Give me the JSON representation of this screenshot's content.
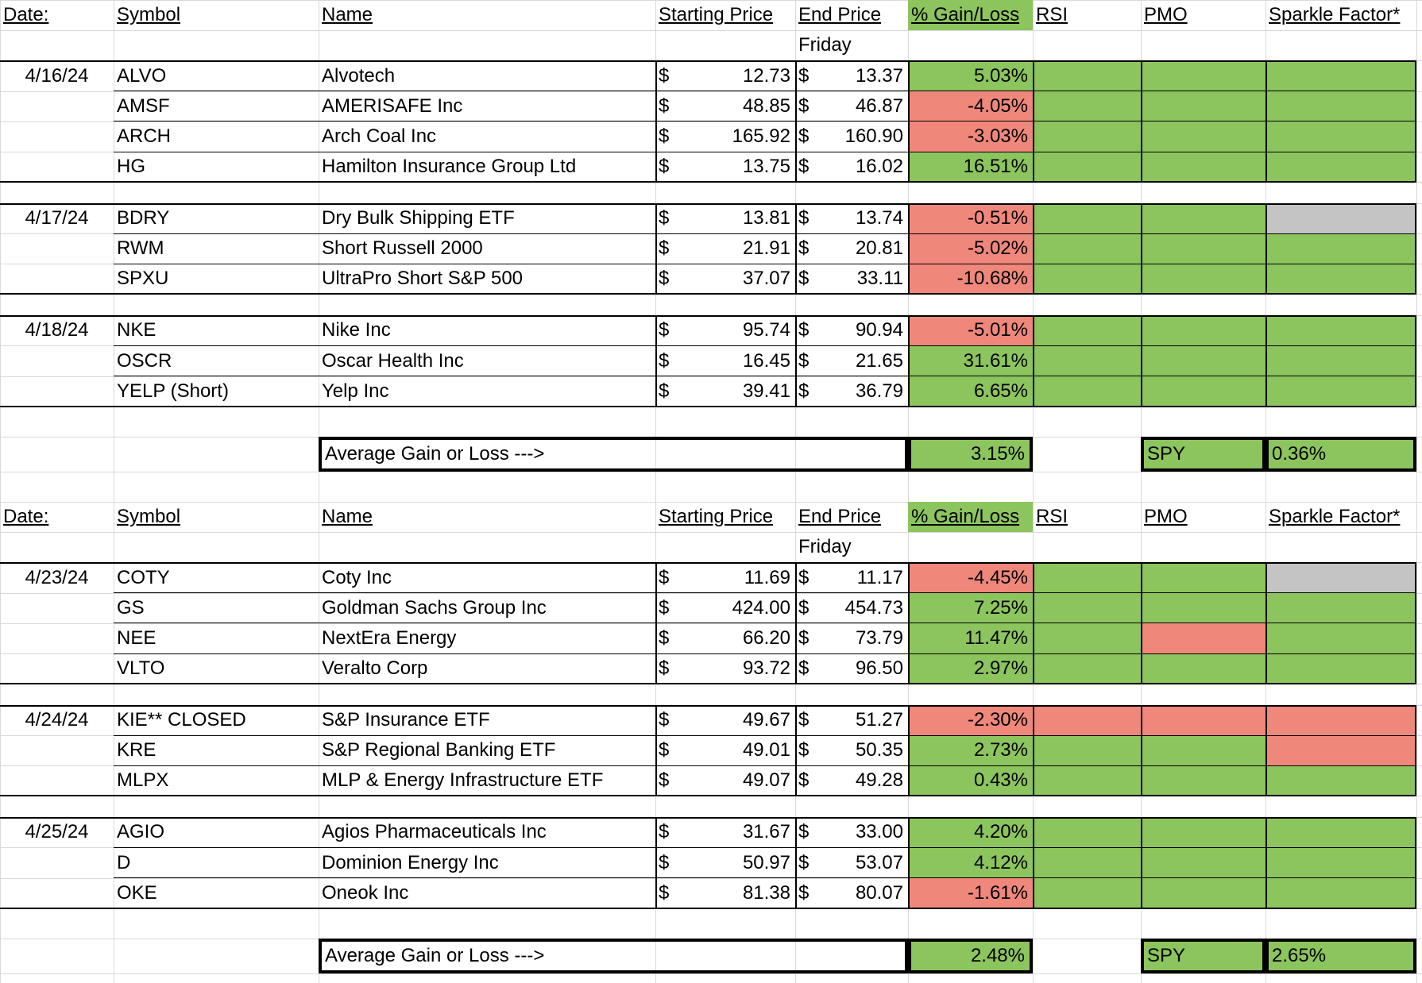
{
  "colors": {
    "green": "#8cc45e",
    "red": "#f0877b",
    "gray": "#c4c4c4",
    "grid": "#d9d9d9"
  },
  "sections": [
    {
      "headers": {
        "date": "Date:",
        "symbol": "Symbol",
        "name": "Name",
        "start": "Starting Price",
        "end": "End Price",
        "gain": "% Gain/Loss",
        "rsi": "RSI",
        "pmo": "PMO",
        "sparkle": "Sparkle Factor*"
      },
      "subheader": "Friday",
      "groups": [
        {
          "date": "4/16/24",
          "rows": [
            {
              "symbol": "ALVO",
              "name": "Alvotech",
              "cur1": "$",
              "start": "12.73",
              "cur2": "$",
              "end": "13.37",
              "gain": "5.03%",
              "gain_color": "green",
              "rsi": "green",
              "pmo": "green",
              "sparkle": "green"
            },
            {
              "symbol": "AMSF",
              "name": "AMERISAFE Inc",
              "cur1": "$",
              "start": "48.85",
              "cur2": "$",
              "end": "46.87",
              "gain": "-4.05%",
              "gain_color": "red",
              "rsi": "green",
              "pmo": "green",
              "sparkle": "green"
            },
            {
              "symbol": "ARCH",
              "name": "Arch Coal Inc",
              "cur1": "$",
              "start": "165.92",
              "cur2": "$",
              "end": "160.90",
              "gain": "-3.03%",
              "gain_color": "red",
              "rsi": "green",
              "pmo": "green",
              "sparkle": "green"
            },
            {
              "symbol": "HG",
              "name": "Hamilton Insurance Group Ltd",
              "cur1": "$",
              "start": "13.75",
              "cur2": "$",
              "end": "16.02",
              "gain": "16.51%",
              "gain_color": "green",
              "rsi": "green",
              "pmo": "green",
              "sparkle": "green"
            }
          ]
        },
        {
          "date": "4/17/24",
          "rows": [
            {
              "symbol": "BDRY",
              "name": "Dry Bulk Shipping ETF",
              "cur1": "$",
              "start": "13.81",
              "cur2": "$",
              "end": "13.74",
              "gain": "-0.51%",
              "gain_color": "red",
              "rsi": "green",
              "pmo": "green",
              "sparkle": "gray"
            },
            {
              "symbol": "RWM",
              "name": "Short Russell 2000",
              "cur1": "$",
              "start": "21.91",
              "cur2": "$",
              "end": "20.81",
              "gain": "-5.02%",
              "gain_color": "red",
              "rsi": "green",
              "pmo": "green",
              "sparkle": "green"
            },
            {
              "symbol": "SPXU",
              "name": "UltraPro Short S&P 500",
              "cur1": "$",
              "start": "37.07",
              "cur2": "$",
              "end": "33.11",
              "gain": "-10.68%",
              "gain_color": "red",
              "rsi": "green",
              "pmo": "green",
              "sparkle": "green"
            }
          ]
        },
        {
          "date": "4/18/24",
          "rows": [
            {
              "symbol": "NKE",
              "name": "Nike Inc",
              "cur1": "$",
              "start": "95.74",
              "cur2": "$",
              "end": "90.94",
              "gain": "-5.01%",
              "gain_color": "red",
              "rsi": "green",
              "pmo": "green",
              "sparkle": "green"
            },
            {
              "symbol": "OSCR",
              "name": "Oscar Health Inc",
              "cur1": "$",
              "start": "16.45",
              "cur2": "$",
              "end": "21.65",
              "gain": "31.61%",
              "gain_color": "green",
              "rsi": "green",
              "pmo": "green",
              "sparkle": "green"
            },
            {
              "symbol": "YELP (Short)",
              "name": "Yelp Inc",
              "cur1": "$",
              "start": "39.41",
              "cur2": "$",
              "end": "36.79",
              "gain": "6.65%",
              "gain_color": "green",
              "rsi": "green",
              "pmo": "green",
              "sparkle": "green"
            }
          ]
        }
      ],
      "summary": {
        "label": "Average Gain or Loss --->",
        "value": "3.15%",
        "spy_label": "SPY",
        "spy_value": "0.36%"
      }
    },
    {
      "headers": {
        "date": "Date:",
        "symbol": "Symbol",
        "name": "Name",
        "start": "Starting Price",
        "end": "End Price",
        "gain": "% Gain/Loss",
        "rsi": "RSI",
        "pmo": "PMO",
        "sparkle": "Sparkle Factor*"
      },
      "subheader": "Friday",
      "groups": [
        {
          "date": "4/23/24",
          "rows": [
            {
              "symbol": "COTY",
              "name": "Coty Inc",
              "cur1": "$",
              "start": "11.69",
              "cur2": "$",
              "end": "11.17",
              "gain": "-4.45%",
              "gain_color": "red",
              "rsi": "green",
              "pmo": "green",
              "sparkle": "gray"
            },
            {
              "symbol": "GS",
              "name": "Goldman Sachs Group Inc",
              "cur1": "$",
              "start": "424.00",
              "cur2": "$",
              "end": "454.73",
              "gain": "7.25%",
              "gain_color": "green",
              "rsi": "green",
              "pmo": "green",
              "sparkle": "green"
            },
            {
              "symbol": "NEE",
              "name": "NextEra Energy",
              "cur1": "$",
              "start": "66.20",
              "cur2": "$",
              "end": "73.79",
              "gain": "11.47%",
              "gain_color": "green",
              "rsi": "green",
              "pmo": "red",
              "sparkle": "green"
            },
            {
              "symbol": "VLTO",
              "name": "Veralto Corp",
              "cur1": "$",
              "start": "93.72",
              "cur2": "$",
              "end": "96.50",
              "gain": "2.97%",
              "gain_color": "green",
              "rsi": "green",
              "pmo": "green",
              "sparkle": "green"
            }
          ]
        },
        {
          "date": "4/24/24",
          "rows": [
            {
              "symbol": "KIE** CLOSED",
              "name": "S&P Insurance ETF",
              "cur1": "$",
              "start": "49.67",
              "cur2": "$",
              "end": "51.27",
              "gain": "-2.30%",
              "gain_color": "red",
              "rsi": "red",
              "pmo": "red",
              "sparkle": "red"
            },
            {
              "symbol": "KRE",
              "name": "S&P Regional Banking ETF",
              "cur1": "$",
              "start": "49.01",
              "cur2": "$",
              "end": "50.35",
              "gain": "2.73%",
              "gain_color": "green",
              "rsi": "green",
              "pmo": "green",
              "sparkle": "red"
            },
            {
              "symbol": "MLPX",
              "name": "MLP & Energy Infrastructure ETF",
              "cur1": "$",
              "start": "49.07",
              "cur2": "$",
              "end": "49.28",
              "gain": "0.43%",
              "gain_color": "green",
              "rsi": "green",
              "pmo": "green",
              "sparkle": "green"
            }
          ]
        },
        {
          "date": "4/25/24",
          "rows": [
            {
              "symbol": "AGIO",
              "name": "Agios Pharmaceuticals Inc",
              "cur1": "$",
              "start": "31.67",
              "cur2": "$",
              "end": "33.00",
              "gain": "4.20%",
              "gain_color": "green",
              "rsi": "green",
              "pmo": "green",
              "sparkle": "green"
            },
            {
              "symbol": "D",
              "name": "Dominion Energy Inc",
              "cur1": "$",
              "start": "50.97",
              "cur2": "$",
              "end": "53.07",
              "gain": "4.12%",
              "gain_color": "green",
              "rsi": "green",
              "pmo": "green",
              "sparkle": "green"
            },
            {
              "symbol": "OKE",
              "name": "Oneok Inc",
              "cur1": "$",
              "start": "81.38",
              "cur2": "$",
              "end": "80.07",
              "gain": "-1.61%",
              "gain_color": "red",
              "rsi": "green",
              "pmo": "green",
              "sparkle": "green"
            }
          ]
        }
      ],
      "summary": {
        "label": "Average Gain or Loss --->",
        "value": "2.48%",
        "spy_label": "SPY",
        "spy_value": "2.65%"
      }
    }
  ]
}
